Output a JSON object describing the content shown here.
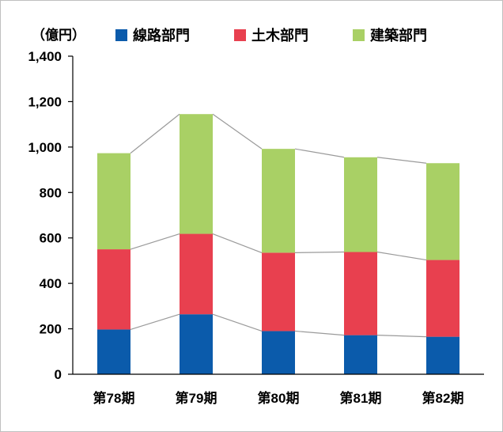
{
  "chart_data": {
    "type": "bar",
    "stacked": true,
    "unit_label": "（億円）",
    "categories": [
      "第78期",
      "第79期",
      "第80期",
      "第81期",
      "第82期"
    ],
    "series": [
      {
        "name": "線路部門",
        "color": "#0b5bab",
        "values": [
          197,
          264,
          190,
          172,
          165
        ]
      },
      {
        "name": "土木部門",
        "color": "#e8404f",
        "values": [
          353,
          354,
          345,
          366,
          338
        ]
      },
      {
        "name": "建築部門",
        "color": "#a9d065",
        "values": [
          423,
          527,
          457,
          417,
          426
        ]
      }
    ],
    "ylim": [
      0,
      1400
    ],
    "yticks": [
      "0",
      "200",
      "400",
      "600",
      "800",
      "1,000",
      "1,200",
      "1,400"
    ],
    "connector_lines": true,
    "legend_position": "top"
  }
}
